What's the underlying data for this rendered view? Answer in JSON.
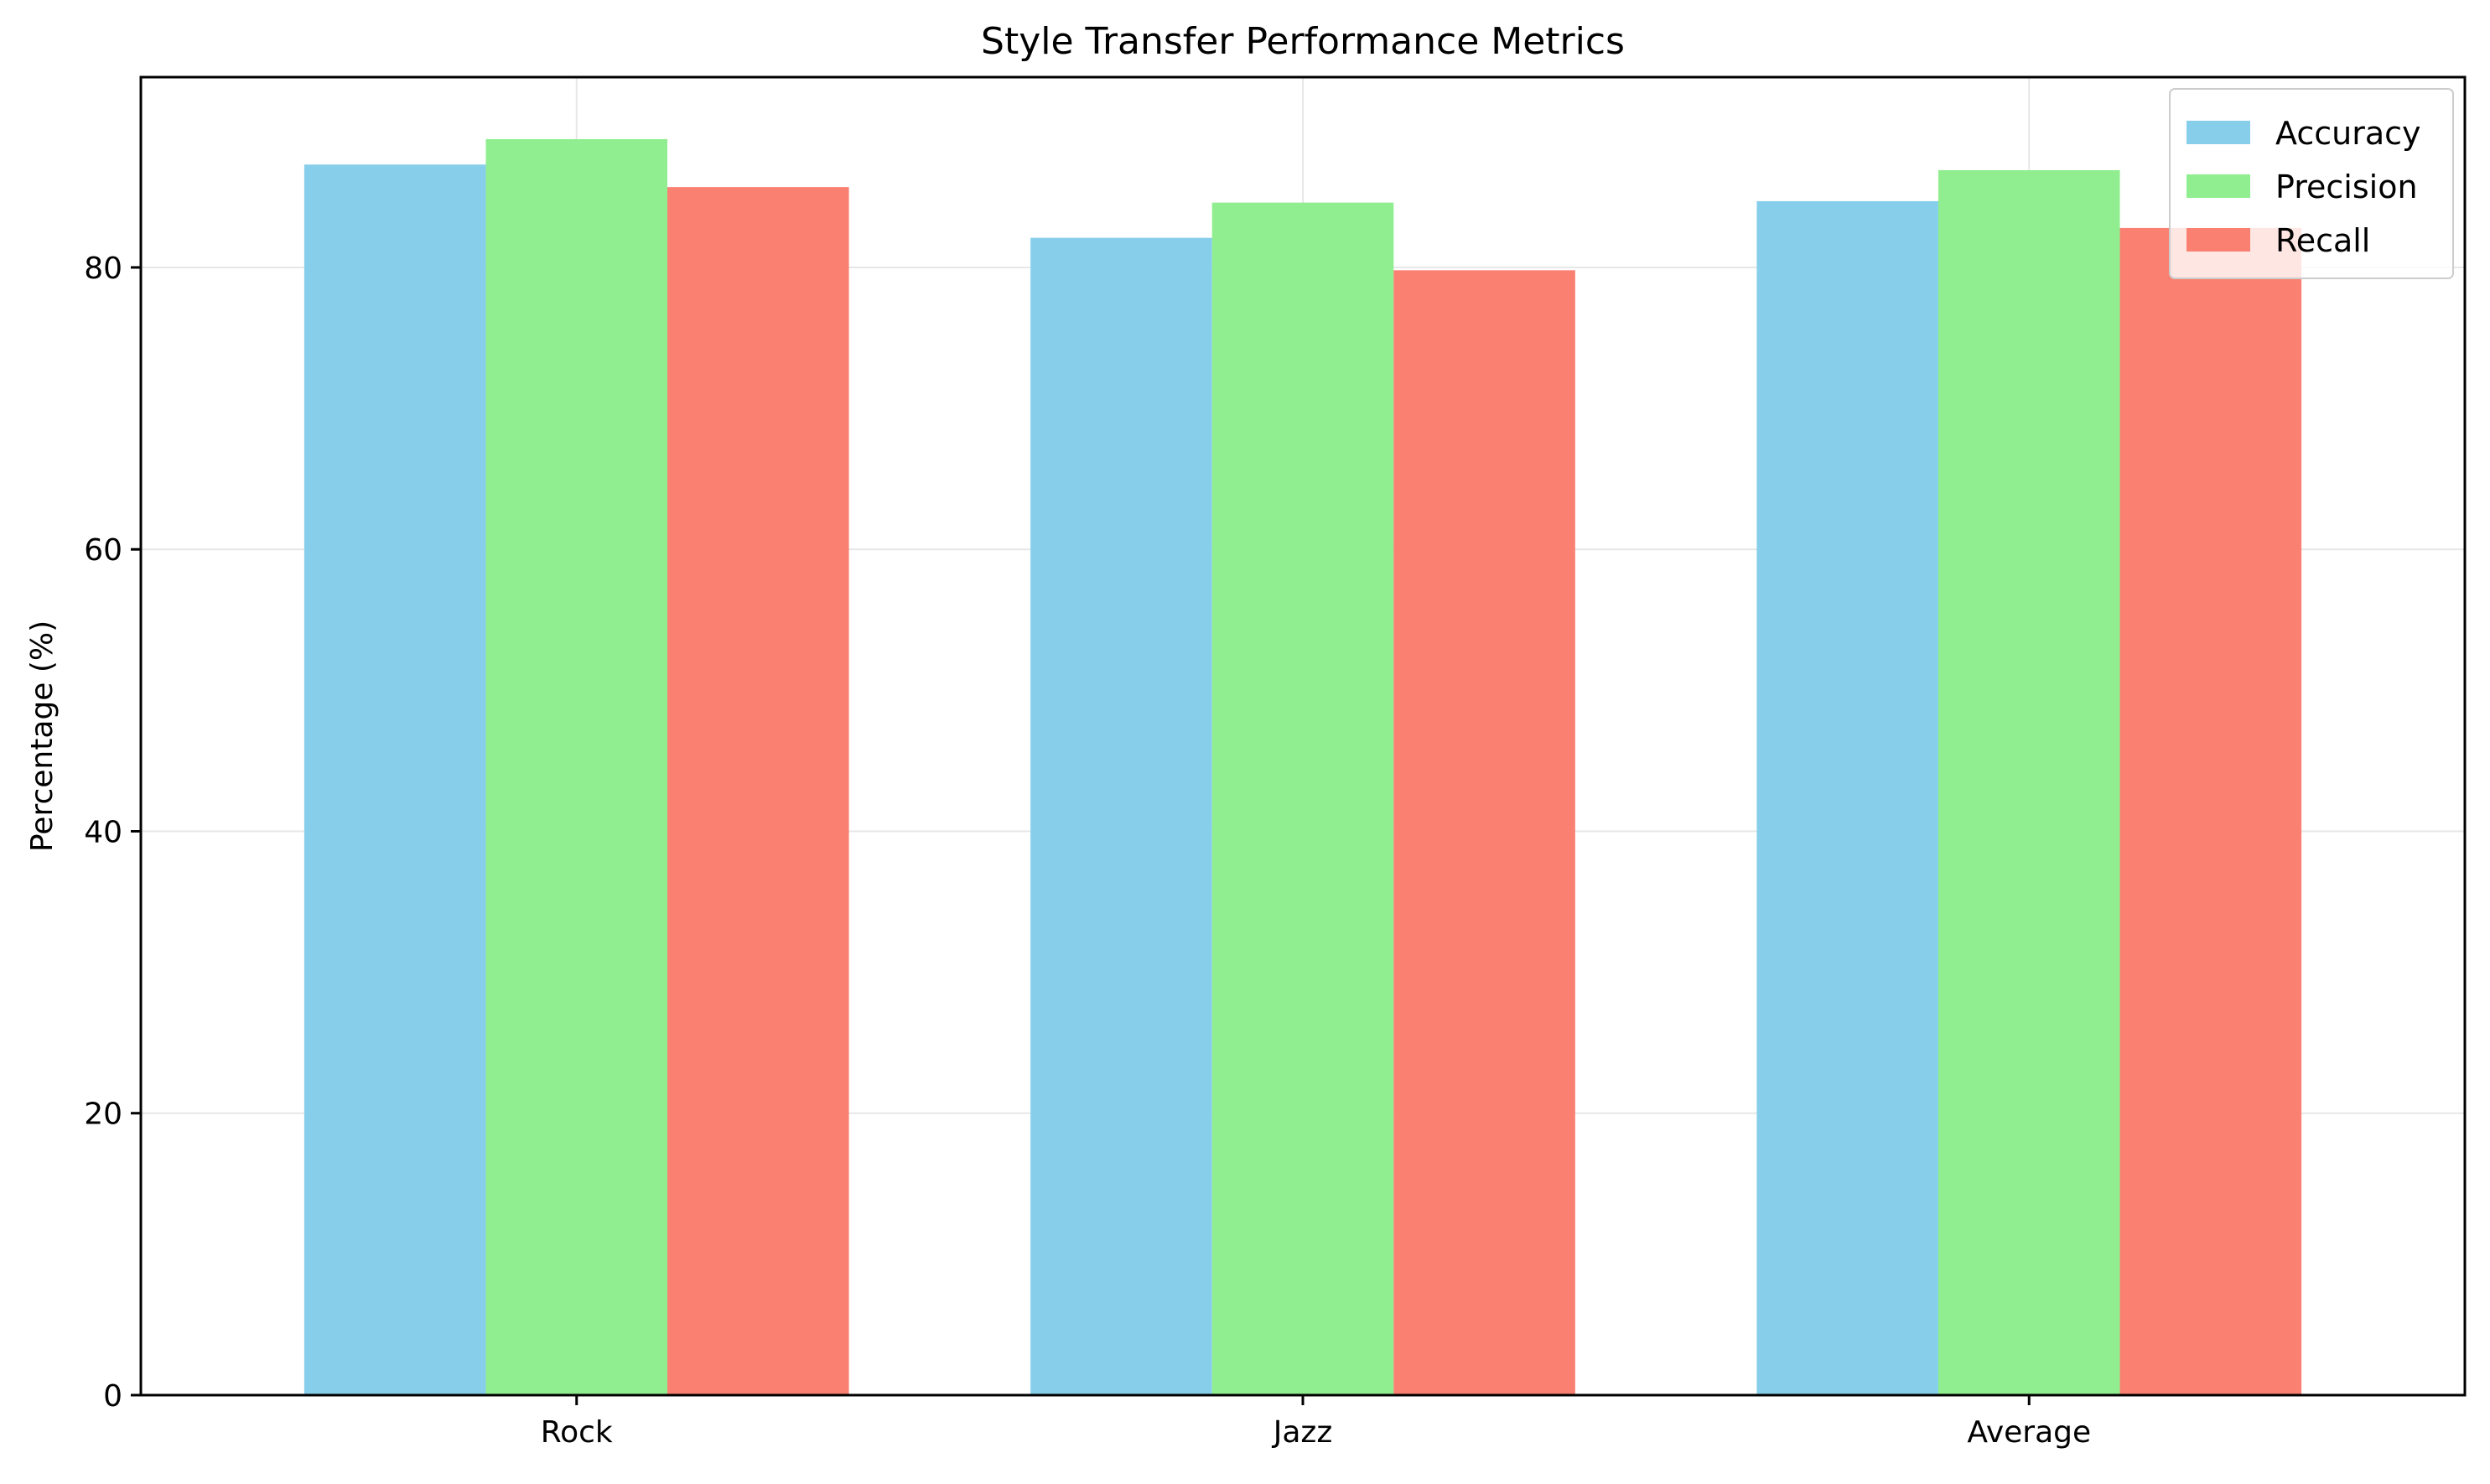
{
  "chart_data": {
    "type": "bar",
    "title": "Style Transfer Performance Metrics",
    "xlabel": "",
    "ylabel": "Percentage (%)",
    "categories": [
      "Rock",
      "Jazz",
      "Average"
    ],
    "series": [
      {
        "name": "Accuracy",
        "color": "#87CEEB",
        "values": [
          87.3,
          82.1,
          84.7
        ]
      },
      {
        "name": "Precision",
        "color": "#90EE90",
        "values": [
          89.1,
          84.6,
          86.9
        ]
      },
      {
        "name": "Recall",
        "color": "#FA8072",
        "values": [
          85.7,
          79.8,
          82.8
        ]
      }
    ],
    "ylim": [
      0,
      93.5
    ],
    "yticks": [
      0,
      20,
      40,
      60,
      80
    ],
    "grid": true,
    "legend_position": "top-right"
  }
}
